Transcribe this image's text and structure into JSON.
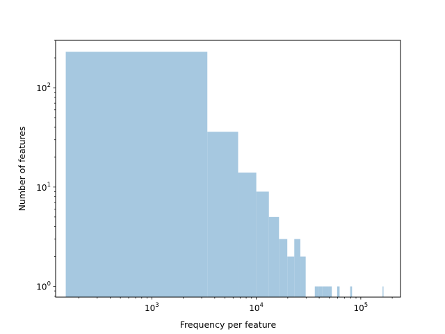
{
  "chart_data": {
    "type": "bar",
    "title": "",
    "xlabel": "Frequency per feature",
    "ylabel": "Number of features",
    "xscale": "log",
    "yscale": "log",
    "xlim": [
      120,
      240000
    ],
    "ylim": [
      0.78,
      300
    ],
    "grid": false,
    "bar_color": "#a6c8e0",
    "x_ticks": [
      {
        "value": 1000,
        "base": "10",
        "exp": "3"
      },
      {
        "value": 10000,
        "base": "10",
        "exp": "4"
      },
      {
        "value": 100000,
        "base": "10",
        "exp": "5"
      }
    ],
    "y_ticks": [
      {
        "value": 1,
        "base": "10",
        "exp": "0"
      },
      {
        "value": 10,
        "base": "10",
        "exp": "1"
      },
      {
        "value": 100,
        "base": "10",
        "exp": "2"
      }
    ],
    "bins": [
      {
        "x0": 150,
        "x1": 3400,
        "count": 230
      },
      {
        "x0": 3400,
        "x1": 6700,
        "count": 36
      },
      {
        "x0": 6700,
        "x1": 10000,
        "count": 14
      },
      {
        "x0": 10000,
        "x1": 13200,
        "count": 9
      },
      {
        "x0": 13200,
        "x1": 16500,
        "count": 5
      },
      {
        "x0": 16500,
        "x1": 19800,
        "count": 3
      },
      {
        "x0": 19800,
        "x1": 23100,
        "count": 2
      },
      {
        "x0": 23100,
        "x1": 26400,
        "count": 3
      },
      {
        "x0": 26400,
        "x1": 29700,
        "count": 2
      },
      {
        "x0": 36300,
        "x1": 39600,
        "count": 1
      },
      {
        "x0": 39600,
        "x1": 42900,
        "count": 1
      },
      {
        "x0": 42900,
        "x1": 46200,
        "count": 1
      },
      {
        "x0": 46200,
        "x1": 49500,
        "count": 1
      },
      {
        "x0": 49500,
        "x1": 52800,
        "count": 1
      },
      {
        "x0": 59400,
        "x1": 62700,
        "count": 1
      },
      {
        "x0": 79200,
        "x1": 82500,
        "count": 1
      },
      {
        "x0": 161700,
        "x1": 165000,
        "count": 1
      }
    ]
  }
}
